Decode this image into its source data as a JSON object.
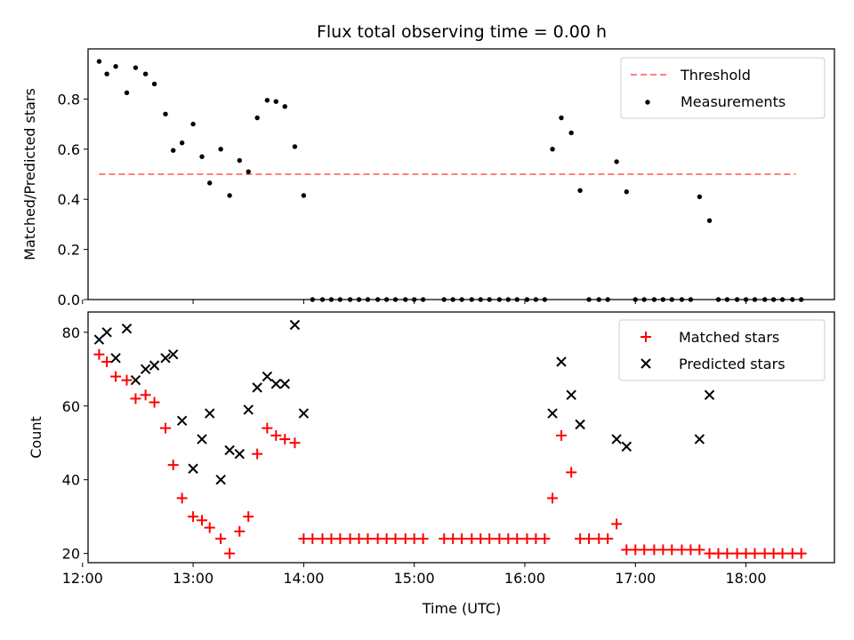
{
  "chart_data": [
    {
      "type": "scatter",
      "title": "Flux total observing time = 0.00 h",
      "xlabel": "",
      "ylabel": "Matched/Predicted stars",
      "xlim": [
        12.05,
        18.8
      ],
      "ylim": [
        0.0,
        1.0
      ],
      "yticks": [
        0.0,
        0.2,
        0.4,
        0.6,
        0.8
      ],
      "ytick_labels": [
        "0.0",
        "0.2",
        "0.4",
        "0.6",
        "0.8"
      ],
      "xticks": [
        12,
        13,
        14,
        15,
        16,
        17,
        18
      ],
      "legend_position": "top-right",
      "legend": [
        {
          "label": "Threshold",
          "color": "#ff7f7f",
          "marker": "dashed-line"
        },
        {
          "label": "Measurements",
          "color": "#000000",
          "marker": "dot"
        }
      ],
      "threshold": {
        "name": "Threshold",
        "x": [
          12.15,
          18.45
        ],
        "y": 0.5
      },
      "series": [
        {
          "name": "Measurements",
          "x": [
            12.15,
            12.22,
            12.3,
            12.4,
            12.48,
            12.57,
            12.65,
            12.75,
            12.82,
            12.9,
            13.0,
            13.08,
            13.15,
            13.25,
            13.33,
            13.42,
            13.5,
            13.58,
            13.67,
            13.75,
            13.83,
            13.92,
            14.0,
            14.08,
            14.17,
            14.25,
            14.33,
            14.42,
            14.5,
            14.58,
            14.67,
            14.75,
            14.83,
            14.92,
            15.0,
            15.08,
            15.27,
            15.35,
            15.43,
            15.52,
            15.6,
            15.68,
            15.77,
            15.85,
            15.93,
            16.02,
            16.1,
            16.18,
            16.25,
            16.33,
            16.42,
            16.5,
            16.58,
            16.67,
            16.75,
            16.83,
            16.92,
            17.0,
            17.08,
            17.17,
            17.25,
            17.33,
            17.42,
            17.5,
            17.58,
            17.67,
            17.75,
            17.83,
            17.92,
            18.0,
            18.08,
            18.17,
            18.25,
            18.33,
            18.42,
            18.5
          ],
          "y": [
            0.95,
            0.9,
            0.93,
            0.825,
            0.925,
            0.9,
            0.86,
            0.74,
            0.595,
            0.625,
            0.7,
            0.57,
            0.465,
            0.6,
            0.415,
            0.555,
            0.51,
            0.725,
            0.795,
            0.79,
            0.77,
            0.61,
            0.415,
            0,
            0,
            0,
            0,
            0,
            0,
            0,
            0,
            0,
            0,
            0,
            0,
            0,
            0,
            0,
            0,
            0,
            0,
            0,
            0,
            0,
            0,
            0,
            0,
            0,
            0.6,
            0.725,
            0.665,
            0.435,
            0,
            0,
            0,
            0.55,
            0.43,
            0,
            0,
            0,
            0,
            0,
            0,
            0,
            0.41,
            0.315,
            0,
            0,
            0,
            0,
            0,
            0,
            0,
            0,
            0,
            0
          ]
        }
      ]
    },
    {
      "type": "scatter",
      "title": "",
      "xlabel": "Time (UTC)",
      "ylabel": "Count",
      "xlim": [
        12.05,
        18.8
      ],
      "ylim": [
        17.5,
        85.5
      ],
      "yticks": [
        20,
        40,
        60,
        80
      ],
      "ytick_labels": [
        "20",
        "40",
        "60",
        "80"
      ],
      "xticks": [
        12,
        13,
        14,
        15,
        16,
        17,
        18
      ],
      "xtick_labels": [
        "12:00",
        "13:00",
        "14:00",
        "15:00",
        "16:00",
        "17:00",
        "18:00"
      ],
      "legend_position": "top-right",
      "legend": [
        {
          "label": "Matched stars",
          "color": "#ff0000",
          "marker": "plus"
        },
        {
          "label": "Predicted stars",
          "color": "#000000",
          "marker": "x"
        }
      ],
      "series": [
        {
          "name": "Matched stars",
          "x": [
            12.15,
            12.22,
            12.3,
            12.4,
            12.48,
            12.57,
            12.65,
            12.75,
            12.82,
            12.9,
            13.0,
            13.08,
            13.15,
            13.25,
            13.33,
            13.42,
            13.5,
            13.58,
            13.67,
            13.75,
            13.83,
            13.92,
            14.0,
            14.08,
            14.17,
            14.25,
            14.33,
            14.42,
            14.5,
            14.58,
            14.67,
            14.75,
            14.83,
            14.92,
            15.0,
            15.08,
            15.27,
            15.35,
            15.43,
            15.52,
            15.6,
            15.68,
            15.77,
            15.85,
            15.93,
            16.02,
            16.1,
            16.18,
            16.25,
            16.33,
            16.42,
            16.5,
            16.58,
            16.67,
            16.75,
            16.83,
            16.92,
            17.0,
            17.08,
            17.17,
            17.25,
            17.33,
            17.42,
            17.5,
            17.58,
            17.67,
            17.75,
            17.83,
            17.92,
            18.0,
            18.08,
            18.17,
            18.25,
            18.33,
            18.42,
            18.5
          ],
          "y": [
            74,
            72,
            68,
            67,
            62,
            63,
            61,
            54,
            44,
            35,
            30,
            29,
            27,
            24,
            20,
            26,
            30,
            47,
            54,
            52,
            51,
            50,
            24,
            24,
            24,
            24,
            24,
            24,
            24,
            24,
            24,
            24,
            24,
            24,
            24,
            24,
            24,
            24,
            24,
            24,
            24,
            24,
            24,
            24,
            24,
            24,
            24,
            24,
            35,
            52,
            42,
            24,
            24,
            24,
            24,
            28,
            21,
            21,
            21,
            21,
            21,
            21,
            21,
            21,
            21,
            20,
            20,
            20,
            20,
            20,
            20,
            20,
            20,
            20,
            20,
            20
          ]
        },
        {
          "name": "Predicted stars",
          "x": [
            12.15,
            12.22,
            12.3,
            12.4,
            12.48,
            12.57,
            12.65,
            12.75,
            12.82,
            12.9,
            13.0,
            13.08,
            13.15,
            13.25,
            13.33,
            13.42,
            13.5,
            13.58,
            13.67,
            13.75,
            13.83,
            13.92,
            14.0,
            16.25,
            16.33,
            16.42,
            16.5,
            16.83,
            16.92,
            17.58,
            17.67
          ],
          "y": [
            78,
            80,
            73,
            81,
            67,
            70,
            71,
            73,
            74,
            56,
            43,
            51,
            58,
            40,
            48,
            47,
            59,
            65,
            68,
            66,
            66,
            82,
            58,
            58,
            72,
            63,
            55,
            51,
            49,
            51,
            63
          ]
        }
      ]
    }
  ]
}
